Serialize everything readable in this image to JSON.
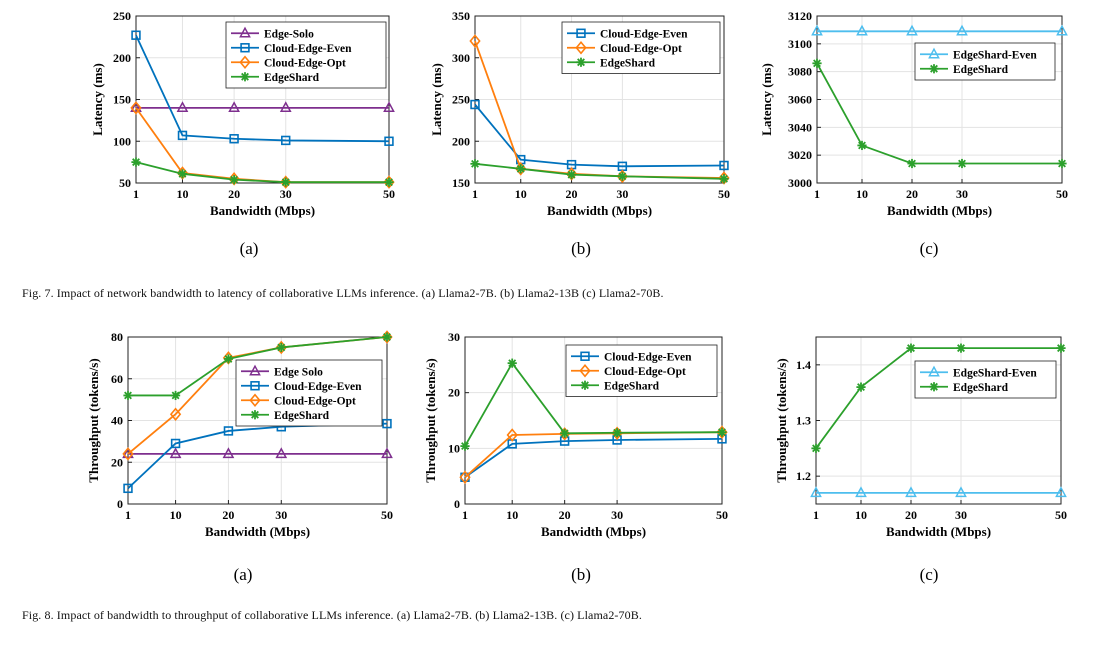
{
  "colors": {
    "Edge-Solo": "#7e2f8e",
    "Cloud-Edge-Even": "#0072bd",
    "Cloud-Edge-Opt": "#ff7f0e",
    "EdgeShard": "#2ca02c",
    "EdgeShard-Even": "#4dbeee"
  },
  "markers": {
    "Edge-Solo": "triangle",
    "Cloud-Edge-Even": "square",
    "Cloud-Edge-Opt": "diamond",
    "EdgeShard": "star",
    "EdgeShard-Even": "triangle"
  },
  "captions": {
    "fig7": "Fig. 7.   Impact of network bandwidth to latency of collaborative LLMs inference. (a) Llama2-7B. (b) Llama2-13B (c) Llama2-70B.",
    "fig8": "Fig. 8.   Impact of bandwidth to throughput of collaborative LLMs inference. (a) Llama2-7B. (b) Llama2-13B. (c) Llama2-70B."
  },
  "chart_data": [
    {
      "type": "line",
      "sublabel": "(a)",
      "xlabel": "Bandwidth (Mbps)",
      "ylabel": "Latency (ms)",
      "x": [
        1,
        10,
        20,
        30,
        50
      ],
      "xlim": [
        1,
        50
      ],
      "ylim": [
        50,
        250
      ],
      "yticks": [
        50,
        100,
        150,
        200,
        250
      ],
      "grid": true,
      "legend": "top-right",
      "series": [
        {
          "name": "Edge-Solo",
          "values": [
            140,
            140,
            140,
            140,
            140
          ]
        },
        {
          "name": "Cloud-Edge-Even",
          "values": [
            227,
            107,
            103,
            101,
            100
          ]
        },
        {
          "name": "Cloud-Edge-Opt",
          "values": [
            140,
            62,
            55,
            51,
            51
          ]
        },
        {
          "name": "EdgeShard",
          "values": [
            75,
            61,
            54,
            51,
            51
          ]
        }
      ]
    },
    {
      "type": "line",
      "sublabel": "(b)",
      "xlabel": "Bandwidth (Mbps)",
      "ylabel": "Latency (ms)",
      "x": [
        1,
        10,
        20,
        30,
        50
      ],
      "xlim": [
        1,
        50
      ],
      "ylim": [
        150,
        350
      ],
      "yticks": [
        150,
        200,
        250,
        300,
        350
      ],
      "grid": true,
      "legend": "top-right",
      "series": [
        {
          "name": "Cloud-Edge-Even",
          "values": [
            244,
            178,
            172,
            170,
            171
          ]
        },
        {
          "name": "Cloud-Edge-Opt",
          "values": [
            320,
            167,
            161,
            158,
            156
          ]
        },
        {
          "name": "EdgeShard",
          "values": [
            173,
            167,
            160,
            158,
            155
          ]
        }
      ]
    },
    {
      "type": "line",
      "sublabel": "(c)",
      "xlabel": "Bandwidth (Mbps)",
      "ylabel": "Latency (ms)",
      "x": [
        1,
        10,
        20,
        30,
        50
      ],
      "xlim": [
        1,
        50
      ],
      "ylim": [
        3000,
        3120
      ],
      "yticks": [
        3000,
        3020,
        3040,
        3060,
        3080,
        3100,
        3120
      ],
      "grid": true,
      "legend": "top-right",
      "series": [
        {
          "name": "EdgeShard-Even",
          "values": [
            3109,
            3109,
            3109,
            3109,
            3109
          ]
        },
        {
          "name": "EdgeShard",
          "values": [
            3086,
            3027,
            3014,
            3014,
            3014
          ]
        }
      ]
    },
    {
      "type": "line",
      "sublabel": "(a)",
      "xlabel": "Bandwidth (Mbps)",
      "ylabel": "Throughput (tokens/s)",
      "x": [
        1,
        10,
        20,
        30,
        50
      ],
      "xlim": [
        1,
        50
      ],
      "ylim": [
        0,
        80
      ],
      "yticks": [
        0,
        20,
        40,
        60,
        80
      ],
      "grid": true,
      "legend": "center-right",
      "series": [
        {
          "name": "Edge Solo",
          "key": "Edge-Solo",
          "values": [
            24,
            24,
            24,
            24,
            24
          ]
        },
        {
          "name": "Cloud-Edge-Even",
          "values": [
            7.5,
            29,
            35,
            37,
            38.5
          ]
        },
        {
          "name": "Cloud-Edge-Opt",
          "values": [
            24,
            43,
            70,
            75,
            80
          ]
        },
        {
          "name": "EdgeShard",
          "values": [
            52,
            52,
            69.5,
            75,
            80
          ]
        }
      ]
    },
    {
      "type": "line",
      "sublabel": "(b)",
      "xlabel": "Bandwidth (Mbps)",
      "ylabel": "Throughput (tokens/s)",
      "x": [
        1,
        10,
        20,
        30,
        50
      ],
      "xlim": [
        1,
        50
      ],
      "ylim": [
        0,
        30
      ],
      "yticks": [
        0,
        10,
        20,
        30
      ],
      "grid": true,
      "legend": "top-right",
      "series": [
        {
          "name": "Cloud-Edge-Even",
          "values": [
            4.8,
            10.8,
            11.3,
            11.5,
            11.7
          ]
        },
        {
          "name": "Cloud-Edge-Opt",
          "values": [
            4.8,
            12.4,
            12.6,
            12.7,
            12.9
          ]
        },
        {
          "name": "EdgeShard",
          "values": [
            10.4,
            25.3,
            12.7,
            12.8,
            12.9
          ]
        }
      ]
    },
    {
      "type": "line",
      "sublabel": "(c)",
      "xlabel": "Bandwidth (Mbps)",
      "ylabel": "Throughput (tokens/s)",
      "x": [
        1,
        10,
        20,
        30,
        50
      ],
      "xlim": [
        1,
        50
      ],
      "ylim": [
        1.15,
        1.45
      ],
      "yticks": [
        1.2,
        1.3,
        1.4
      ],
      "grid": true,
      "legend": "top-right",
      "series": [
        {
          "name": "EdgeShard-Even",
          "values": [
            1.17,
            1.17,
            1.17,
            1.17,
            1.17
          ]
        },
        {
          "name": "EdgeShard",
          "values": [
            1.25,
            1.36,
            1.43,
            1.43,
            1.43
          ]
        }
      ]
    }
  ]
}
